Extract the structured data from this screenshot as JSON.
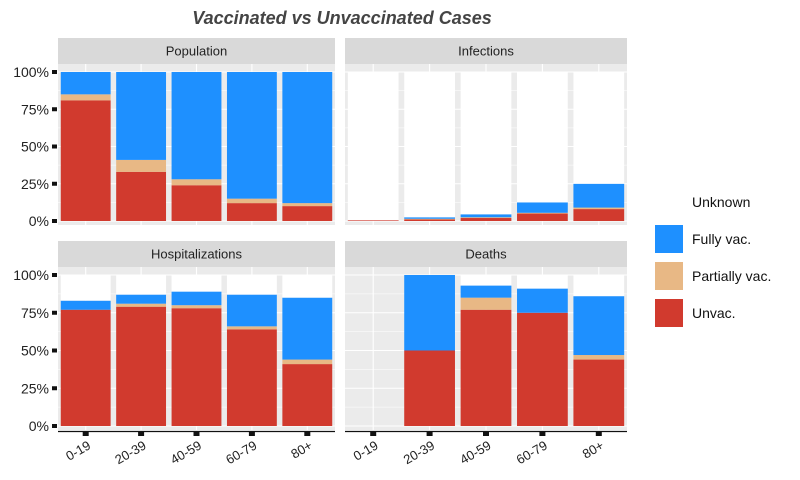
{
  "chart_data": {
    "type": "bar",
    "stacked": true,
    "title": "Vaccinated vs Unvaccinated Cases",
    "xlabel": "",
    "ylabel": "",
    "ylim": [
      0,
      1
    ],
    "y_ticks": [
      "0%",
      "25%",
      "50%",
      "75%",
      "100%"
    ],
    "categories": [
      "0-19",
      "20-39",
      "40-59",
      "60-79",
      "80+"
    ],
    "legend": {
      "position": "right",
      "entries": [
        {
          "name": "Unknown",
          "color": "#ffffff"
        },
        {
          "name": "Fully vac.",
          "color": "#1e90ff"
        },
        {
          "name": "Partially vac.",
          "color": "#e8b885"
        },
        {
          "name": "Unvac.",
          "color": "#d13a2e"
        }
      ]
    },
    "facets": [
      {
        "name": "Population",
        "series": [
          {
            "name": "Unvac.",
            "values": [
              0.81,
              0.33,
              0.24,
              0.12,
              0.1
            ]
          },
          {
            "name": "Partially vac.",
            "values": [
              0.04,
              0.08,
              0.04,
              0.03,
              0.02
            ]
          },
          {
            "name": "Fully vac.",
            "values": [
              0.15,
              0.59,
              0.72,
              0.85,
              0.88
            ]
          },
          {
            "name": "Unknown",
            "values": [
              0.0,
              0.0,
              0.0,
              0.0,
              0.0
            ]
          }
        ]
      },
      {
        "name": "Infections",
        "series": [
          {
            "name": "Unvac.",
            "values": [
              0.005,
              0.01,
              0.02,
              0.05,
              0.08
            ]
          },
          {
            "name": "Partially vac.",
            "values": [
              0.0,
              0.005,
              0.005,
              0.005,
              0.01
            ]
          },
          {
            "name": "Fully vac.",
            "values": [
              0.0,
              0.01,
              0.02,
              0.07,
              0.16
            ]
          },
          {
            "name": "Unknown",
            "values": [
              0.995,
              0.975,
              0.955,
              0.875,
              0.75
            ]
          }
        ]
      },
      {
        "name": "Hospitalizations",
        "series": [
          {
            "name": "Unvac.",
            "values": [
              0.77,
              0.79,
              0.78,
              0.64,
              0.41
            ]
          },
          {
            "name": "Partially vac.",
            "values": [
              0.0,
              0.02,
              0.02,
              0.02,
              0.03
            ]
          },
          {
            "name": "Fully vac.",
            "values": [
              0.06,
              0.06,
              0.09,
              0.21,
              0.41
            ]
          },
          {
            "name": "Unknown",
            "values": [
              0.17,
              0.13,
              0.11,
              0.13,
              0.15
            ]
          }
        ]
      },
      {
        "name": "Deaths",
        "series": [
          {
            "name": "Unvac.",
            "values": [
              0.0,
              0.5,
              0.77,
              0.75,
              0.44
            ]
          },
          {
            "name": "Partially vac.",
            "values": [
              0.0,
              0.0,
              0.08,
              0.0,
              0.03
            ]
          },
          {
            "name": "Fully vac.",
            "values": [
              0.0,
              0.5,
              0.08,
              0.16,
              0.39
            ]
          },
          {
            "name": "Unknown",
            "values": [
              0.0,
              0.0,
              0.07,
              0.09,
              0.14
            ]
          }
        ]
      }
    ]
  }
}
